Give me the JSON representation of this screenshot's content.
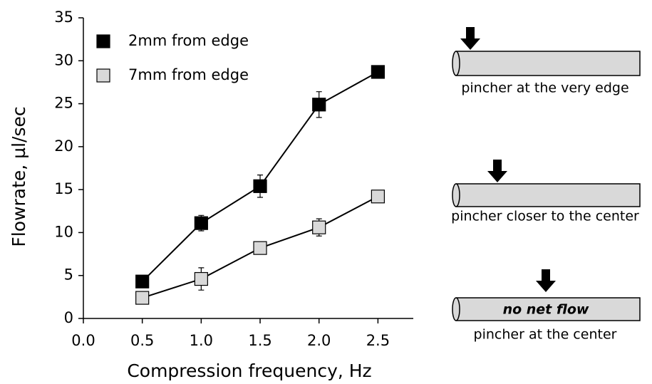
{
  "chart_data": {
    "type": "line",
    "x_label": "Compression frequency, Hz",
    "y_label": "Flowrate, µl/sec",
    "x": [
      0.5,
      1.0,
      1.5,
      2.0,
      2.5
    ],
    "series": [
      {
        "name": "2mm from edge",
        "color": "#000000",
        "values": [
          4.3,
          11.1,
          15.4,
          24.9,
          28.7
        ],
        "errors": [
          0.3,
          0.9,
          1.3,
          1.5,
          0.3
        ]
      },
      {
        "name": "7mm from edge",
        "color": "#d9d9d9",
        "values": [
          2.4,
          4.6,
          8.2,
          10.6,
          14.2
        ],
        "errors": [
          0.3,
          1.3,
          0.3,
          1.0,
          0.3
        ]
      }
    ],
    "xlim": [
      0,
      2.8
    ],
    "xticks": [
      {
        "value": 0,
        "label": "0.0"
      },
      0.5,
      {
        "value": 1,
        "label": "1.0"
      },
      1.5,
      {
        "value": 2,
        "label": "2.0"
      },
      2.5
    ],
    "ylim": [
      0,
      35
    ],
    "yticks": [
      0,
      5,
      10,
      15,
      20,
      25,
      30,
      35
    ],
    "legend": "upper-left",
    "grid": false
  },
  "diagram": {
    "panels": [
      {
        "caption": "pincher at the very edge"
      },
      {
        "caption": "pincher closer to the center"
      },
      {
        "caption": "pincher at the center",
        "inner_label": "no net flow"
      }
    ]
  }
}
